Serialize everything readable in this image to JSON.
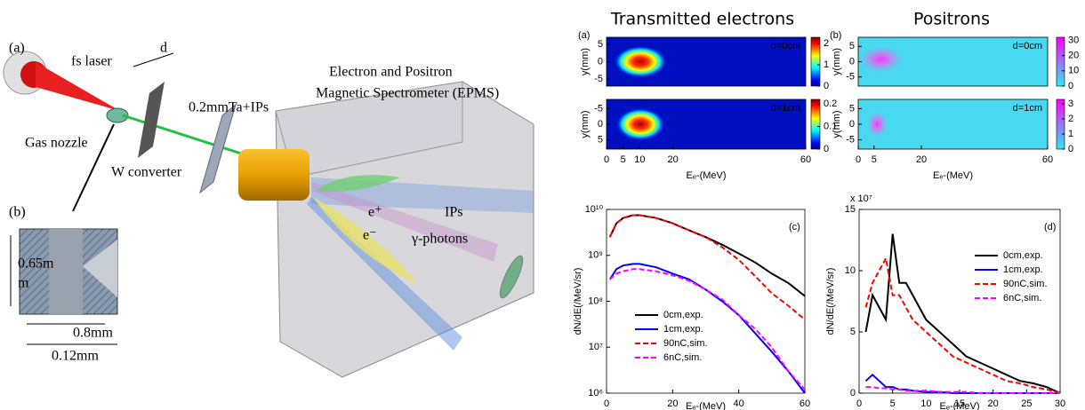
{
  "diagram": {
    "panel_a": "(a)",
    "laser": "fs laser",
    "distance": "d",
    "target": "0.2mmTa+IPs",
    "spectrometer_line1": "Electron and Positron",
    "spectrometer_line2": "Magnetic Spectrometer (EPMS)",
    "nozzle": "Gas nozzle",
    "converter": "W converter",
    "positron": "e⁺",
    "plates": "IPs",
    "electron": "e⁻",
    "photons": "γ-photons",
    "panel_b": "(b)",
    "height_line1": "0.65m",
    "height_line2": "m",
    "inner_width": "0.8mm",
    "outer_width": "0.12mm"
  },
  "chart_data": [
    {
      "type": "heatmap",
      "title": "Transmitted electrons",
      "panel_label": "(a)",
      "annotation": "d=0cm",
      "ylabel": "y(mm)",
      "ylim": [
        -7,
        7
      ],
      "yticks": [
        -5,
        0,
        5
      ],
      "colormap": "jet",
      "colorbar_lim": [
        0,
        2.3
      ],
      "colorbar_ticks": [
        0,
        1,
        2
      ]
    },
    {
      "type": "heatmap",
      "annotation": "d=1cm",
      "ylabel": "y(mm)",
      "ylim": [
        8,
        -8
      ],
      "yticks": [
        -5,
        0,
        5
      ],
      "colormap": "jet",
      "colorbar_lim": [
        0,
        0.22
      ],
      "colorbar_ticks": [
        0,
        0.1,
        0.2
      ],
      "xlim": [
        0,
        60
      ],
      "xticks": [
        0,
        5,
        10,
        20,
        60
      ],
      "xlabel": "Eₑ-(MeV)"
    },
    {
      "type": "heatmap",
      "title": "Positrons",
      "panel_label": "(b)",
      "annotation": "d=0cm",
      "ylabel": "y(mm)",
      "ylim": [
        -8,
        8
      ],
      "yticks": [
        -5,
        0,
        5
      ],
      "colormap": "cool",
      "colorbar_lim": [
        0,
        32
      ],
      "colorbar_ticks": [
        0,
        10,
        20,
        30
      ]
    },
    {
      "type": "heatmap",
      "annotation": "d=1cm",
      "ylabel": "y(mm)",
      "ylim": [
        -8,
        8
      ],
      "yticks": [
        -5,
        0,
        5
      ],
      "colormap": "cool",
      "colorbar_lim": [
        0,
        3.3
      ],
      "colorbar_ticks": [
        0,
        1,
        2,
        3
      ],
      "xlim": [
        0,
        60
      ],
      "xticks": [
        0,
        5,
        20,
        60
      ],
      "xlabel": "Eₑ-(MeV)"
    },
    {
      "type": "line",
      "panel_label": "(c)",
      "log_y": true,
      "xlabel": "Eₑ-(MeV)",
      "ylabel": "dN/dE(/MeV/sr)",
      "xlim": [
        0,
        60
      ],
      "xticks": [
        0,
        20,
        40,
        60
      ],
      "ylim": [
        1000000,
        10000000000
      ],
      "yticks": [
        {
          "value": 1000000,
          "label": "10⁶"
        },
        {
          "value": 10000000,
          "label": "10⁷"
        },
        {
          "value": 100000000,
          "label": "10⁸"
        },
        {
          "value": 1000000000,
          "label": "10⁹"
        },
        {
          "value": 10000000000,
          "label": "10¹⁰"
        }
      ],
      "legend": "lower left",
      "x": [
        1,
        3,
        5,
        8,
        10,
        15,
        20,
        25,
        30,
        35,
        40,
        45,
        50,
        55,
        60
      ],
      "series": [
        {
          "name": "0cm,exp.",
          "color": "#000000",
          "dashed": false,
          "values": [
            2500000000,
            5000000000,
            6500000000,
            7500000000,
            7500000000,
            6500000000,
            5000000000,
            3500000000,
            2500000000,
            1700000000,
            1100000000,
            700000000,
            400000000,
            250000000,
            130000000
          ]
        },
        {
          "name": "1cm,exp.",
          "color": "#0000ff",
          "dashed": false,
          "values": [
            300000000,
            500000000,
            600000000,
            650000000,
            650000000,
            550000000,
            400000000,
            300000000,
            180000000,
            100000000,
            50000000,
            20000000,
            8000000,
            3000000,
            1000000
          ]
        },
        {
          "name": "90nC,sim.",
          "color": "#ff0000",
          "dashed": true,
          "values": [
            2500000000,
            5000000000,
            6500000000,
            7500000000,
            7500000000,
            6500000000,
            5000000000,
            3500000000,
            2500000000,
            1500000000,
            800000000,
            350000000,
            150000000,
            80000000,
            40000000
          ]
        },
        {
          "name": "6nC,sim.",
          "color": "#ff00ff",
          "dashed": true,
          "values": [
            300000000,
            400000000,
            450000000,
            500000000,
            500000000,
            450000000,
            370000000,
            280000000,
            180000000,
            110000000,
            50000000,
            25000000,
            10000000,
            3000000,
            1200000
          ]
        }
      ]
    },
    {
      "type": "line",
      "panel_label": "(d)",
      "log_y": false,
      "xlabel": "Eₑ-(MeV)",
      "ylabel": "dN/dE(/MeV/sr)",
      "y_multiplier": "x 10⁷",
      "xlim": [
        0,
        30
      ],
      "xticks": [
        0,
        5,
        10,
        15,
        20,
        25,
        30
      ],
      "ylim": [
        0,
        15
      ],
      "yticks": [
        0,
        5,
        10,
        15
      ],
      "legend": "upper right",
      "x": [
        1,
        2,
        3,
        4,
        5,
        6,
        7,
        8,
        10,
        12,
        14,
        16,
        18,
        20,
        22,
        24,
        26,
        28,
        30
      ],
      "series": [
        {
          "name": "0cm,exp.",
          "color": "#000000",
          "dashed": false,
          "values": [
            5,
            8,
            7,
            6,
            13,
            9,
            9,
            8,
            6,
            5,
            4,
            3,
            2.5,
            2,
            1.5,
            1,
            0.8,
            0.5,
            0
          ]
        },
        {
          "name": "1cm,exp.",
          "color": "#0000ff",
          "dashed": false,
          "values": [
            1,
            1.5,
            1,
            0.5,
            0.5,
            0.3,
            0.3,
            0.2,
            0.1,
            0.1,
            0,
            0,
            0,
            0,
            0,
            0,
            0,
            0,
            0
          ]
        },
        {
          "name": "90nC,sim.",
          "color": "#ff0000",
          "dashed": true,
          "values": [
            7,
            9,
            10,
            11,
            8,
            8,
            7,
            6,
            5,
            4,
            3,
            2.5,
            2,
            1.5,
            1,
            0.8,
            0.5,
            0.3,
            0
          ]
        },
        {
          "name": "6nC,sim.",
          "color": "#ff00ff",
          "dashed": true,
          "values": [
            0.5,
            0.5,
            0.4,
            0.4,
            0.3,
            0.3,
            0.2,
            0.2,
            0.2,
            0.1,
            0.1,
            0.1,
            0,
            0,
            0,
            0,
            0,
            0,
            0
          ]
        }
      ]
    }
  ]
}
